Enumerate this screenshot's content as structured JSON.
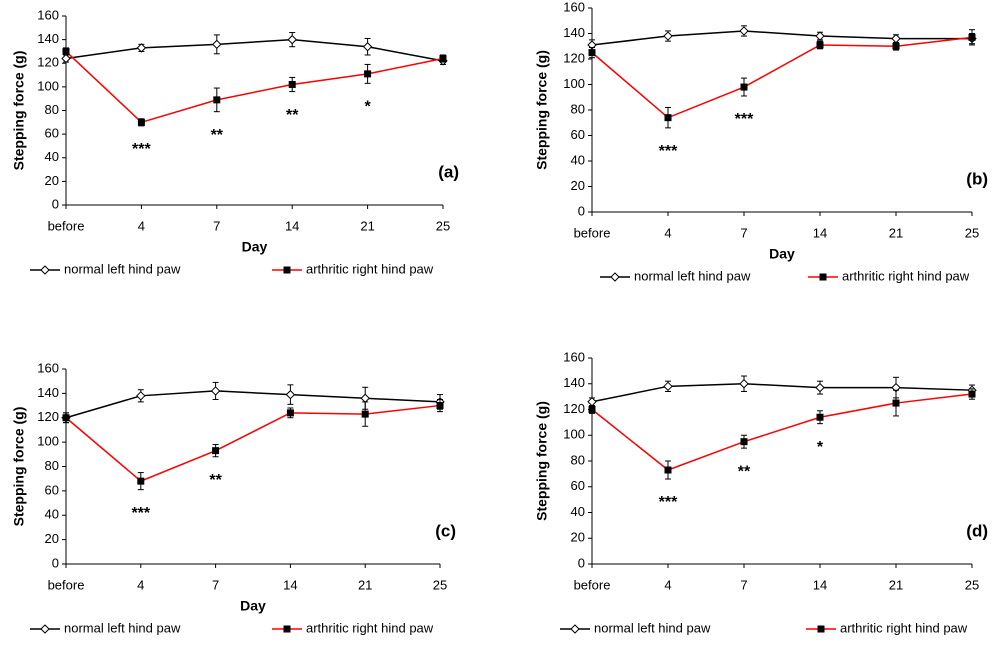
{
  "chart_data": [
    {
      "type": "line",
      "panel_label": "(a)",
      "xlabel": "Day",
      "ylabel": "Stepping force (g)",
      "categories": [
        "before",
        "4",
        "7",
        "14",
        "21",
        "25"
      ],
      "ylim": [
        0,
        160
      ],
      "yticks": [
        0,
        20,
        40,
        60,
        80,
        100,
        120,
        140,
        160
      ],
      "series": [
        {
          "name": "normal left hind paw",
          "color": "#000000",
          "marker": "diamond",
          "values": [
            124,
            133,
            136,
            140,
            134,
            122
          ],
          "errors": [
            3,
            3,
            8,
            6,
            7,
            3
          ]
        },
        {
          "name": "arthritic right hind paw",
          "color": "#ff0000",
          "marker": "square",
          "values": [
            130,
            70,
            89,
            102,
            111,
            124
          ],
          "errors": [
            3,
            3,
            10,
            6,
            8,
            3
          ]
        }
      ],
      "significance": [
        null,
        "***",
        "**",
        "**",
        "*",
        null
      ]
    },
    {
      "type": "line",
      "panel_label": "(b)",
      "xlabel": "Day",
      "ylabel": "Stepping force (g)",
      "categories": [
        "before",
        "4",
        "7",
        "14",
        "21",
        "25"
      ],
      "ylim": [
        0,
        160
      ],
      "yticks": [
        0,
        20,
        40,
        60,
        80,
        100,
        120,
        140,
        160
      ],
      "series": [
        {
          "name": "normal left hind paw",
          "color": "#000000",
          "marker": "diamond",
          "values": [
            131,
            138,
            142,
            138,
            136,
            136
          ],
          "errors": [
            4,
            4,
            4,
            3,
            3,
            4
          ]
        },
        {
          "name": "arthritic right hind paw",
          "color": "#ff0000",
          "marker": "square",
          "values": [
            125,
            74,
            98,
            131,
            130,
            137
          ],
          "errors": [
            4,
            8,
            7,
            3,
            3,
            6
          ]
        }
      ],
      "significance": [
        null,
        "***",
        "***",
        null,
        null,
        null
      ]
    },
    {
      "type": "line",
      "panel_label": "(c)",
      "xlabel": "Day",
      "ylabel": "Stepping force (g)",
      "categories": [
        "before",
        "4",
        "7",
        "14",
        "21",
        "25"
      ],
      "ylim": [
        0,
        160
      ],
      "yticks": [
        0,
        20,
        40,
        60,
        80,
        100,
        120,
        140,
        160
      ],
      "series": [
        {
          "name": "normal left hind paw",
          "color": "#000000",
          "marker": "diamond",
          "values": [
            120,
            138,
            142,
            139,
            136,
            133
          ],
          "errors": [
            4,
            5,
            7,
            8,
            9,
            6
          ]
        },
        {
          "name": "arthritic right hind paw",
          "color": "#ff0000",
          "marker": "square",
          "values": [
            120,
            68,
            93,
            124,
            123,
            130
          ],
          "errors": [
            4,
            7,
            5,
            4,
            10,
            5
          ]
        }
      ],
      "significance": [
        null,
        "***",
        "**",
        null,
        null,
        null
      ]
    },
    {
      "type": "line",
      "panel_label": "(d)",
      "ylabel": "Stepping force (g)",
      "categories": [
        "before",
        "4",
        "7",
        "14",
        "21",
        "25"
      ],
      "ylim": [
        0,
        160
      ],
      "yticks": [
        0,
        20,
        40,
        60,
        80,
        100,
        120,
        140,
        160
      ],
      "series": [
        {
          "name": "normal left hind paw",
          "color": "#000000",
          "marker": "diamond",
          "values": [
            126,
            138,
            140,
            137,
            137,
            135
          ],
          "errors": [
            3,
            4,
            6,
            5,
            8,
            4
          ]
        },
        {
          "name": "arthritic right hind paw",
          "color": "#ff0000",
          "marker": "square",
          "values": [
            120,
            73,
            95,
            114,
            125,
            132
          ],
          "errors": [
            3,
            7,
            5,
            5,
            10,
            4
          ]
        }
      ],
      "significance": [
        null,
        "***",
        "**",
        "*",
        null,
        null
      ]
    }
  ]
}
